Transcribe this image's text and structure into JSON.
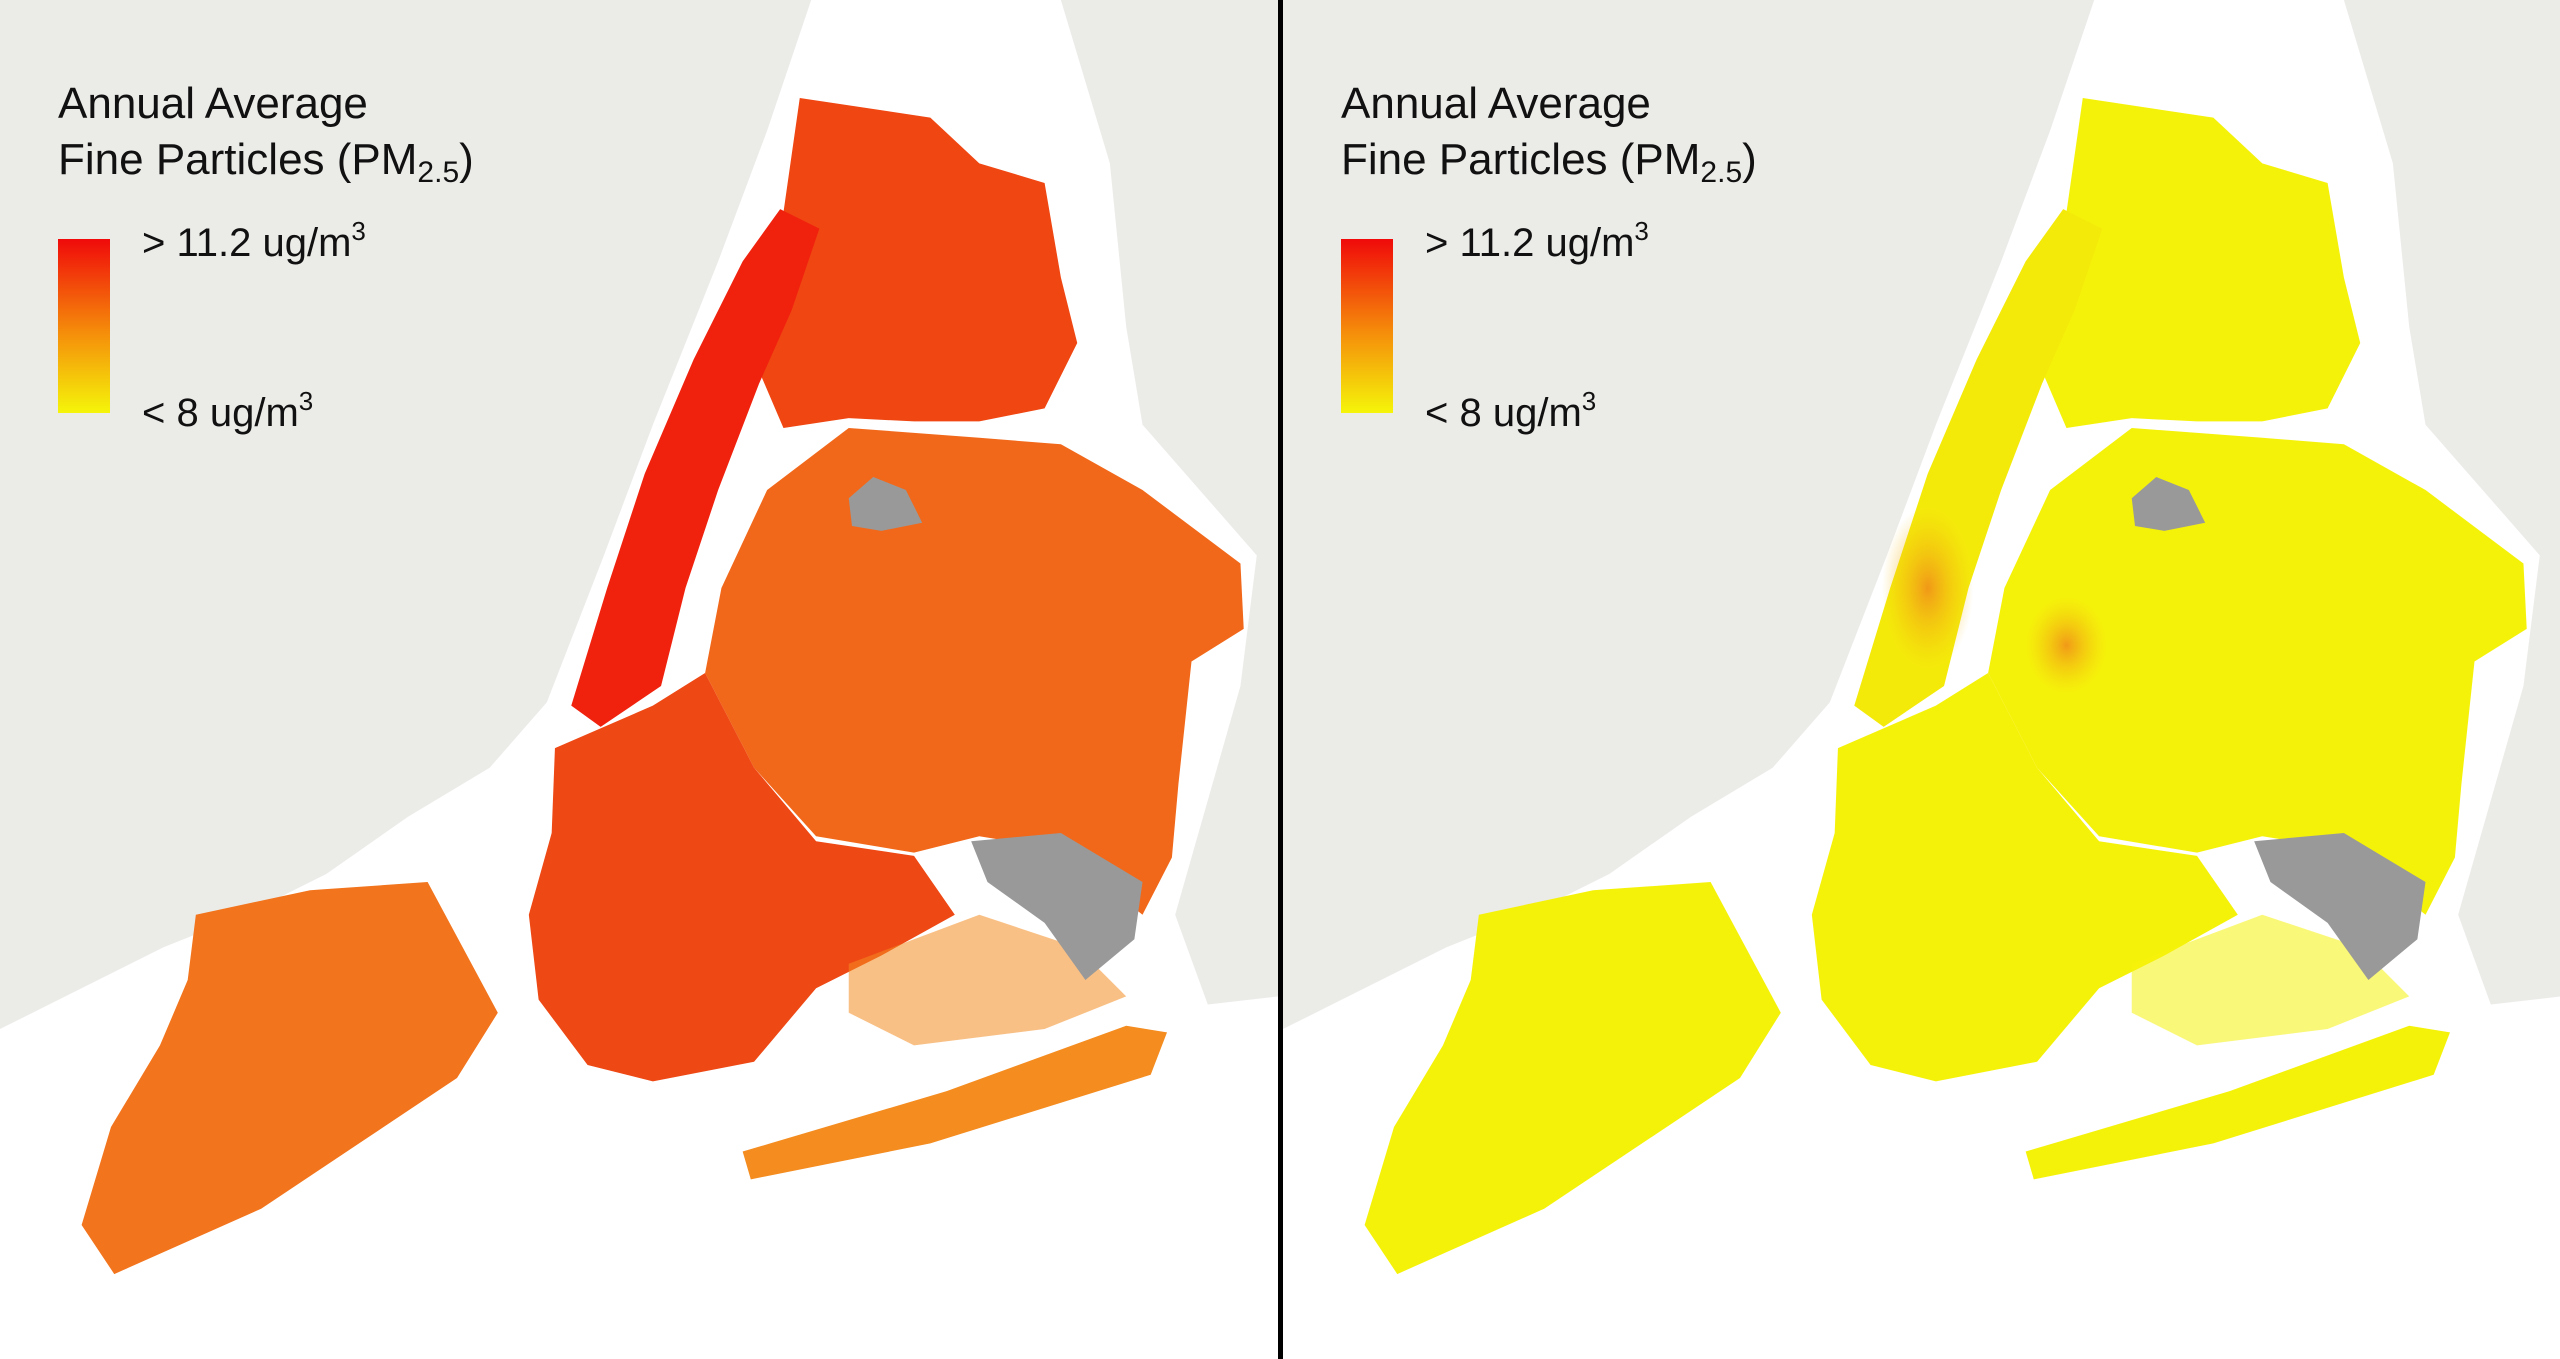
{
  "panels": [
    {
      "legend": {
        "title_line1": "Annual Average",
        "title_line2_main": "Fine Particles (PM",
        "title_line2_sub": "2.5",
        "title_line2_end": ")",
        "high_label": "> 11.2 ug/m",
        "low_label": "< 8 ug/m",
        "unit_exponent": "3"
      },
      "colors": {
        "manhattan": "#f0220e",
        "bronx": "#f04612",
        "queens": "#f2681a",
        "brooklyn": "#ee4814",
        "staten_island": "#f2741c",
        "rockaway": "#f48c20"
      }
    },
    {
      "legend": {
        "title_line1": "Annual Average",
        "title_line2_main": "Fine Particles (PM",
        "title_line2_sub": "2.5",
        "title_line2_end": ")",
        "high_label": "> 11.2 ug/m",
        "low_label": "< 8 ug/m",
        "unit_exponent": "3"
      },
      "colors": {
        "manhattan": "#f4ea0a",
        "bronx": "#f5f20a",
        "queens": "#f5f20a",
        "brooklyn": "#f5f20a",
        "staten_island": "#f5f20a",
        "rockaway": "#f5f20a"
      }
    }
  ],
  "scale_colors": {
    "high": "#f00a0a",
    "mid": "#f5900a",
    "low": "#f5f50a"
  },
  "land_color": "#ebebe8",
  "airport_color": "#999999"
}
